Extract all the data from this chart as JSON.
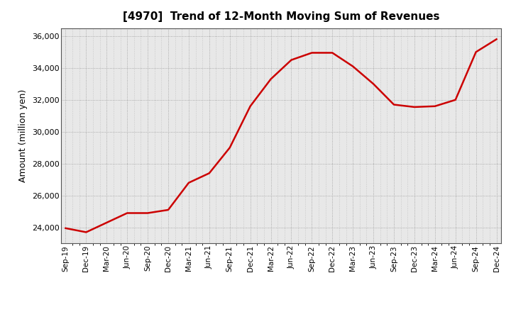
{
  "title": "[4970]  Trend of 12-Month Moving Sum of Revenues",
  "ylabel": "Amount (million yen)",
  "line_color": "#cc0000",
  "line_width": 1.8,
  "background_color": "#ffffff",
  "plot_bg_color": "#e8e8e8",
  "grid_color": "#999999",
  "ylim": [
    23000,
    36500
  ],
  "yticks": [
    24000,
    26000,
    28000,
    30000,
    32000,
    34000,
    36000
  ],
  "x_labels": [
    "Sep-19",
    "Dec-19",
    "Mar-20",
    "Jun-20",
    "Sep-20",
    "Dec-20",
    "Mar-21",
    "Jun-21",
    "Sep-21",
    "Dec-21",
    "Mar-22",
    "Jun-22",
    "Sep-22",
    "Dec-22",
    "Mar-23",
    "Jun-23",
    "Sep-23",
    "Dec-23",
    "Mar-24",
    "Jun-24",
    "Sep-24",
    "Dec-24"
  ],
  "values": [
    23950,
    23700,
    24300,
    24900,
    24900,
    25100,
    26800,
    27400,
    29000,
    31600,
    33300,
    34500,
    34950,
    34950,
    34100,
    33000,
    31700,
    31550,
    31600,
    32000,
    35000,
    35800
  ]
}
